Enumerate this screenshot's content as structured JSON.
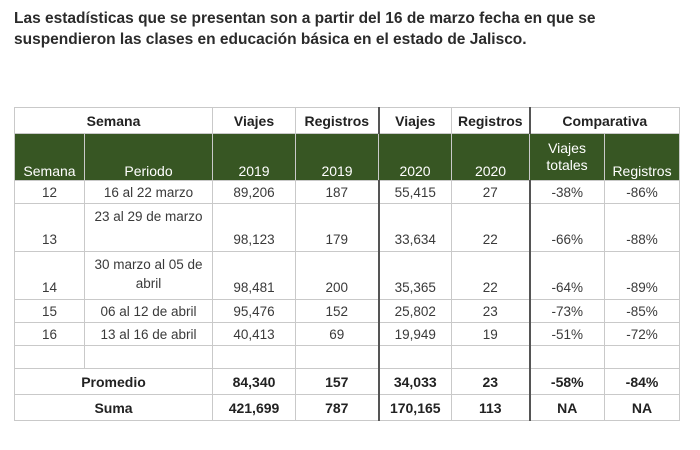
{
  "intro": "Las estadísticas que se presentan son a partir del 16 de marzo fecha en que se suspendieron las clases en educación básica en el estado de Jalisco.",
  "header1": {
    "semana": "Semana",
    "viajes_2019": "Viajes",
    "registros_2019": "Registros",
    "viajes_2020": "Viajes",
    "registros_2020": "Registros",
    "comparativa": "Comparativa"
  },
  "header2": {
    "semana": "Semana",
    "periodo": "Periodo",
    "y2019a": "2019",
    "y2019b": "2019",
    "y2020a": "2020",
    "y2020b": "2020",
    "viajes_totales": "Viajes totales",
    "registros": "Registros"
  },
  "rows": [
    {
      "semana": "12",
      "periodo": "16 al 22 marzo",
      "viajes_2019": "89,206",
      "registros_2019": "187",
      "viajes_2020": "55,415",
      "registros_2020": "27",
      "comp_viajes": "-38%",
      "comp_registros": "-86%"
    },
    {
      "semana": "13",
      "periodo": "23 al 29 de marzo",
      "viajes_2019": "98,123",
      "registros_2019": "179",
      "viajes_2020": "33,634",
      "registros_2020": "22",
      "comp_viajes": "-66%",
      "comp_registros": "-88%"
    },
    {
      "semana": "14",
      "periodo": "30 marzo al 05 de abril",
      "viajes_2019": "98,481",
      "registros_2019": "200",
      "viajes_2020": "35,365",
      "registros_2020": "22",
      "comp_viajes": "-64%",
      "comp_registros": "-89%"
    },
    {
      "semana": "15",
      "periodo": "06 al 12 de abril",
      "viajes_2019": "95,476",
      "registros_2019": "152",
      "viajes_2020": "25,802",
      "registros_2020": "23",
      "comp_viajes": "-73%",
      "comp_registros": "-85%"
    },
    {
      "semana": "16",
      "periodo": "13 al 16 de abril",
      "viajes_2019": "40,413",
      "registros_2019": "69",
      "viajes_2020": "19,949",
      "registros_2020": "19",
      "comp_viajes": "-51%",
      "comp_registros": "-72%"
    }
  ],
  "promedio": {
    "label": "Promedio",
    "viajes_2019": "84,340",
    "registros_2019": "157",
    "viajes_2020": "34,033",
    "registros_2020": "23",
    "comp_viajes": "-58%",
    "comp_registros": "-84%"
  },
  "suma": {
    "label": "Suma",
    "viajes_2019": "421,699",
    "registros_2019": "787",
    "viajes_2020": "170,165",
    "registros_2020": "113",
    "comp_viajes": "NA",
    "comp_registros": "NA"
  },
  "colors": {
    "header_green": "#375623",
    "header_text": "#ffffff"
  }
}
